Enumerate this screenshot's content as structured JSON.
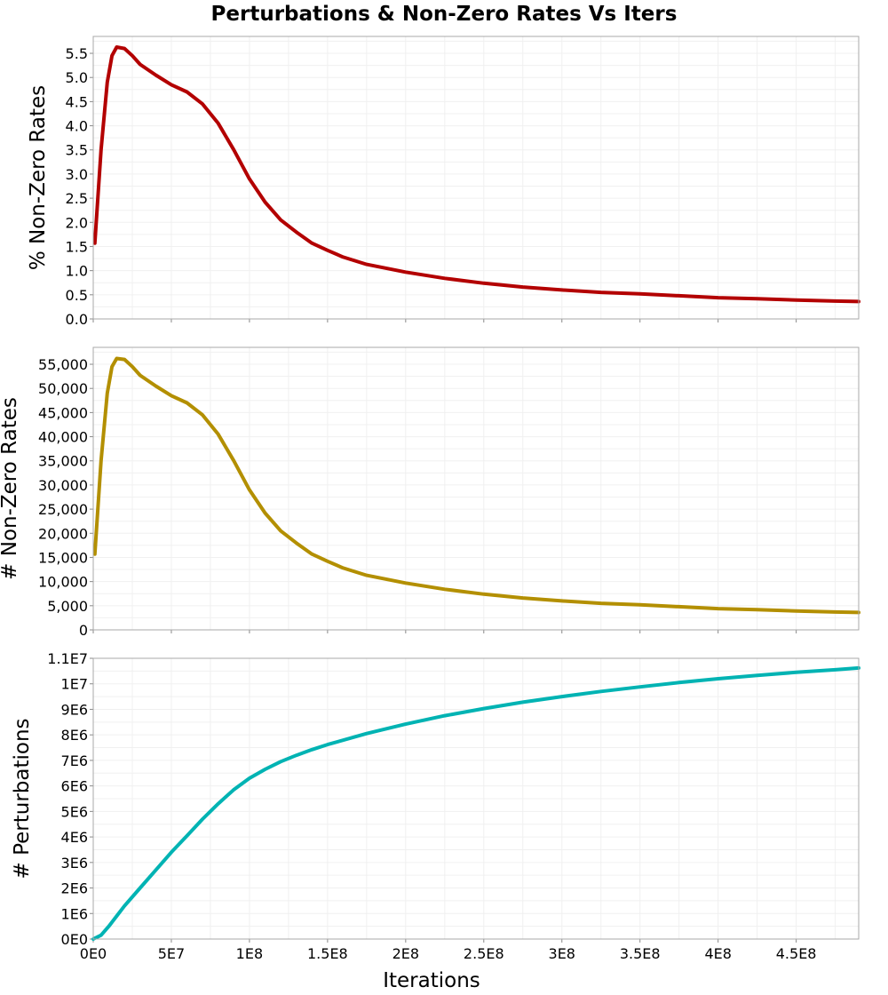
{
  "chart_data": [
    {
      "type": "line",
      "title": "Perturbations & Non-Zero Rates Vs Iters",
      "xlabel": "",
      "ylabel": "% Non-Zero Rates",
      "xlim": [
        0,
        490000000
      ],
      "ylim": [
        0,
        5.85
      ],
      "x_ticks": [
        0,
        50000000,
        100000000,
        150000000,
        200000000,
        250000000,
        300000000,
        350000000,
        400000000,
        450000000
      ],
      "x_tick_labels": [
        "0E0",
        "5E7",
        "1E8",
        "1.5E8",
        "2E8",
        "2.5E8",
        "3E8",
        "3.5E8",
        "4E8",
        "4.5E8"
      ],
      "y_ticks": [
        0,
        0.5,
        1.0,
        1.5,
        2.0,
        2.5,
        3.0,
        3.5,
        4.0,
        4.5,
        5.0,
        5.5
      ],
      "y_tick_labels": [
        "0.0",
        "0.5",
        "1.0",
        "1.5",
        "2.0",
        "2.5",
        "3.0",
        "3.5",
        "4.0",
        "4.5",
        "5.0",
        "5.5"
      ],
      "grid": true,
      "color": "#b30000",
      "series": [
        {
          "name": "% Non-Zero Rates",
          "x": [
            1000000,
            5000000,
            9000000,
            12000000,
            15000000,
            20000000,
            25000000,
            30000000,
            40000000,
            50000000,
            60000000,
            70000000,
            80000000,
            90000000,
            100000000,
            110000000,
            120000000,
            130000000,
            140000000,
            150000000,
            160000000,
            175000000,
            200000000,
            225000000,
            250000000,
            275000000,
            300000000,
            325000000,
            350000000,
            375000000,
            400000000,
            425000000,
            450000000,
            475000000,
            490000000
          ],
          "y": [
            1.57,
            3.5,
            4.9,
            5.45,
            5.63,
            5.6,
            5.45,
            5.27,
            5.05,
            4.85,
            4.7,
            4.45,
            4.05,
            3.5,
            2.9,
            2.42,
            2.05,
            1.8,
            1.57,
            1.42,
            1.28,
            1.13,
            0.97,
            0.84,
            0.74,
            0.66,
            0.6,
            0.55,
            0.52,
            0.48,
            0.44,
            0.42,
            0.39,
            0.37,
            0.36
          ]
        }
      ]
    },
    {
      "type": "line",
      "title": "",
      "xlabel": "",
      "ylabel": "# Non-Zero Rates",
      "xlim": [
        0,
        490000000
      ],
      "ylim": [
        0,
        58500
      ],
      "x_ticks": [
        0,
        50000000,
        100000000,
        150000000,
        200000000,
        250000000,
        300000000,
        350000000,
        400000000,
        450000000
      ],
      "x_tick_labels": [
        "0E0",
        "5E7",
        "1E8",
        "1.5E8",
        "2E8",
        "2.5E8",
        "3E8",
        "3.5E8",
        "4E8",
        "4.5E8"
      ],
      "y_ticks": [
        0,
        5000,
        10000,
        15000,
        20000,
        25000,
        30000,
        35000,
        40000,
        45000,
        50000,
        55000
      ],
      "y_tick_labels": [
        "0",
        "5,000",
        "10,000",
        "15,000",
        "20,000",
        "25,000",
        "30,000",
        "35,000",
        "40,000",
        "45,000",
        "50,000",
        "55,000"
      ],
      "grid": true,
      "color": "#b38f00",
      "series": [
        {
          "name": "# Non-Zero Rates",
          "x": [
            1000000,
            5000000,
            9000000,
            12000000,
            15000000,
            20000000,
            25000000,
            30000000,
            40000000,
            50000000,
            60000000,
            70000000,
            80000000,
            90000000,
            100000000,
            110000000,
            120000000,
            130000000,
            140000000,
            150000000,
            160000000,
            175000000,
            200000000,
            225000000,
            250000000,
            275000000,
            300000000,
            325000000,
            350000000,
            375000000,
            400000000,
            425000000,
            450000000,
            475000000,
            490000000
          ],
          "y": [
            15700,
            35000,
            49000,
            54500,
            56200,
            56000,
            54500,
            52700,
            50500,
            48500,
            47000,
            44500,
            40500,
            35000,
            29000,
            24200,
            20500,
            18000,
            15700,
            14200,
            12800,
            11300,
            9700,
            8400,
            7400,
            6600,
            6000,
            5500,
            5200,
            4800,
            4400,
            4200,
            3900,
            3700,
            3600
          ]
        }
      ]
    },
    {
      "type": "line",
      "title": "",
      "xlabel": "Iterations",
      "ylabel": "# Perturbations",
      "xlim": [
        0,
        490000000
      ],
      "ylim": [
        0,
        11000000
      ],
      "x_ticks": [
        0,
        50000000,
        100000000,
        150000000,
        200000000,
        250000000,
        300000000,
        350000000,
        400000000,
        450000000
      ],
      "x_tick_labels": [
        "0E0",
        "5E7",
        "1E8",
        "1.5E8",
        "2E8",
        "2.5E8",
        "3E8",
        "3.5E8",
        "4E8",
        "4.5E8"
      ],
      "y_ticks": [
        0,
        1000000,
        2000000,
        3000000,
        4000000,
        5000000,
        6000000,
        7000000,
        8000000,
        9000000,
        10000000,
        11000000
      ],
      "y_tick_labels": [
        "0E0",
        "1E6",
        "2E6",
        "3E6",
        "4E6",
        "5E6",
        "6E6",
        "7E6",
        "8E6",
        "9E6",
        "1E7",
        "1.1E7"
      ],
      "grid": true,
      "color": "#00b3b3",
      "series": [
        {
          "name": "# Perturbations",
          "x": [
            0,
            5000000,
            10000000,
            15000000,
            20000000,
            30000000,
            40000000,
            50000000,
            60000000,
            70000000,
            80000000,
            90000000,
            100000000,
            110000000,
            120000000,
            130000000,
            140000000,
            150000000,
            175000000,
            200000000,
            225000000,
            250000000,
            275000000,
            300000000,
            325000000,
            350000000,
            375000000,
            400000000,
            425000000,
            450000000,
            475000000,
            490000000
          ],
          "y": [
            0,
            150000,
            500000,
            900000,
            1300000,
            2000000,
            2700000,
            3400000,
            4050000,
            4700000,
            5300000,
            5850000,
            6300000,
            6650000,
            6950000,
            7200000,
            7420000,
            7620000,
            8050000,
            8420000,
            8750000,
            9030000,
            9280000,
            9500000,
            9700000,
            9880000,
            10050000,
            10200000,
            10330000,
            10450000,
            10550000,
            10620000
          ]
        }
      ]
    }
  ]
}
